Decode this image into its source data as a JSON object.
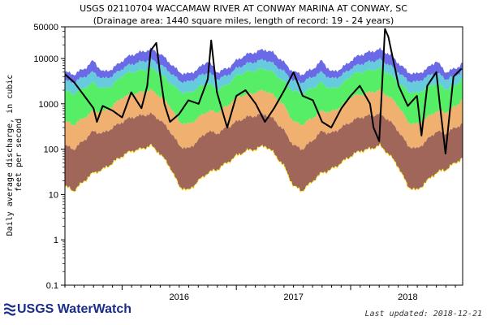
{
  "header": {
    "title": "USGS 02110704 WACCAMAW RIVER AT CONWAY MARINA AT CONWAY, SC",
    "subtitle": "(Drainage area: 1440 square miles, length of record: 19 - 24 years)"
  },
  "footer": {
    "logo_text": "USGS WaterWatch",
    "last_updated": "Last updated: 2018-12-21"
  },
  "chart_data": {
    "type": "area",
    "ylabel": "Daily average discharge, in cubic feet per second",
    "y_scale": "log",
    "ylim": [
      0.1,
      50000
    ],
    "y_ticks": [
      0.1,
      1,
      10,
      100,
      1000,
      10000,
      50000
    ],
    "y_tick_labels": [
      "0.1",
      "1",
      "10",
      "100",
      "1000",
      "10000",
      "50000"
    ],
    "xlim": [
      2015.5,
      2018.98
    ],
    "x_ticks": [
      2016,
      2017,
      2018
    ],
    "x_tick_labels": [
      "2016",
      "2017",
      "2018"
    ],
    "grid": false,
    "legend": "none",
    "seasonal_profile": {
      "x": [
        0.0,
        0.08,
        0.17,
        0.25,
        0.33,
        0.42,
        0.5,
        0.58,
        0.67,
        0.75,
        0.83,
        0.92,
        1.0
      ],
      "max": [
        9000,
        12000,
        14000,
        16000,
        13000,
        8000,
        5000,
        4500,
        6000,
        9000,
        5000,
        6000,
        9000
      ],
      "p90": [
        6000,
        7500,
        8500,
        9500,
        7500,
        5000,
        3200,
        3000,
        4000,
        5000,
        3500,
        4200,
        6000
      ],
      "p75": [
        4200,
        5000,
        5500,
        6000,
        4800,
        3000,
        1900,
        1700,
        2300,
        2900,
        2100,
        2600,
        4200
      ],
      "p25": [
        1400,
        1600,
        1800,
        2000,
        1500,
        900,
        400,
        350,
        500,
        700,
        650,
        900,
        1400
      ],
      "p10": [
        400,
        500,
        550,
        600,
        450,
        250,
        120,
        100,
        160,
        250,
        220,
        300,
        400
      ],
      "min": [
        70,
        90,
        100,
        120,
        80,
        40,
        15,
        12,
        20,
        30,
        35,
        50,
        70
      ]
    },
    "series": [
      {
        "x": [
          2015.5,
          2015.58,
          2015.67,
          2015.75,
          2015.78,
          2015.83,
          2015.92,
          2016.0,
          2016.08,
          2016.17,
          2016.22,
          2016.25,
          2016.3,
          2016.33,
          2016.37,
          2016.42,
          2016.5,
          2016.58,
          2016.67,
          2016.75,
          2016.78,
          2016.83,
          2016.92,
          2017.0,
          2017.08,
          2017.17,
          2017.25,
          2017.33,
          2017.42,
          2017.5,
          2017.58,
          2017.67,
          2017.75,
          2017.83,
          2017.92,
          2018.0,
          2018.08,
          2018.17,
          2018.2,
          2018.25,
          2018.3,
          2018.33,
          2018.42,
          2018.5,
          2018.58,
          2018.62,
          2018.67,
          2018.75,
          2018.78,
          2018.83,
          2018.9,
          2018.97
        ],
        "values": [
          4500,
          3000,
          1500,
          800,
          400,
          900,
          700,
          500,
          1800,
          800,
          2500,
          15000,
          22000,
          5000,
          1000,
          400,
          600,
          1200,
          1000,
          3500,
          25000,
          1800,
          300,
          1500,
          2000,
          1000,
          400,
          800,
          2000,
          5000,
          1500,
          1200,
          400,
          300,
          800,
          1500,
          2500,
          1000,
          300,
          150,
          45000,
          30000,
          2500,
          900,
          1500,
          200,
          2500,
          5000,
          1000,
          80,
          4000,
          6000
        ]
      }
    ],
    "colors": {
      "max_band": "#6a6ae6",
      "p90_band": "#66ccdd",
      "p75_band": "#55ee66",
      "p25_band": "#f0b070",
      "p10_band": "#a0665a",
      "min_line": "#ffee22",
      "current": "#000000"
    }
  }
}
